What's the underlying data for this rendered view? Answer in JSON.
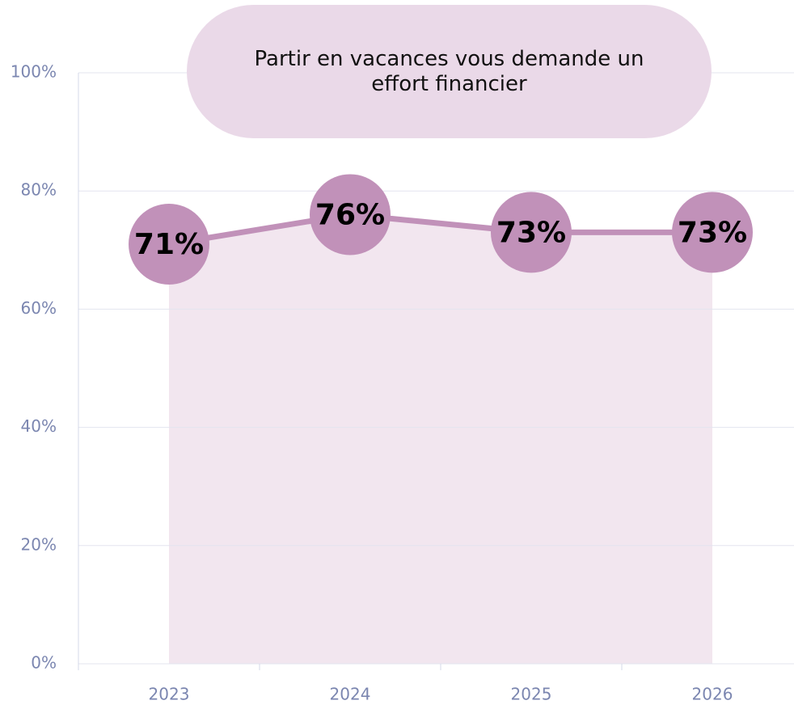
{
  "chart_data": {
    "type": "line",
    "title": "Partir en vacances vous demande un effort financier",
    "categories": [
      "2023",
      "2024",
      "2025",
      "2026"
    ],
    "values": [
      71,
      76,
      73,
      73
    ],
    "value_labels": [
      "71%",
      "76%",
      "73%",
      "73%"
    ],
    "color": "#c191b9",
    "area_color": "#f2e6ef",
    "ylim": [
      0,
      100
    ],
    "yticks": [
      {
        "value": 0,
        "label": "0%"
      },
      {
        "value": 20,
        "label": "20%"
      },
      {
        "value": 40,
        "label": "40%"
      },
      {
        "value": 60,
        "label": "60%"
      },
      {
        "value": 80,
        "label": "80%"
      },
      {
        "value": 100,
        "label": "100%"
      }
    ],
    "grid": true
  }
}
